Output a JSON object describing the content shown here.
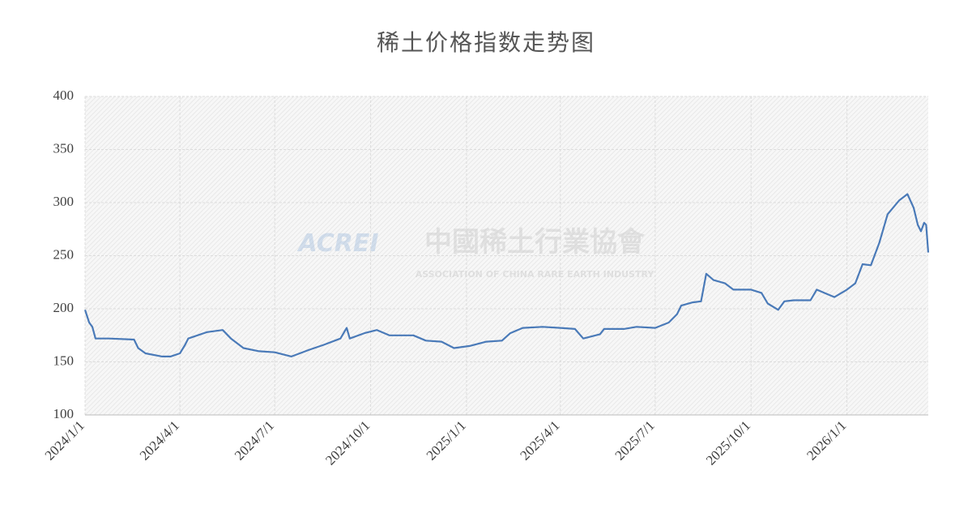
{
  "chart_data": {
    "type": "line",
    "title": "稀土价格指数走势图",
    "watermark_logo": "ACREI",
    "watermark_title": "中國稀土行業協會",
    "watermark_subtitle": "ASSOCIATION OF CHINA RARE EARTH INDUSTRY",
    "x": [
      "2024/1/1",
      "2024/1/5",
      "2024/1/8",
      "2024/1/11",
      "2024/1/17",
      "2024/1/24",
      "2024/2/17",
      "2024/2/21",
      "2024/2/28",
      "2024/3/15",
      "2024/3/23",
      "2024/4/1",
      "2024/4/6",
      "2024/4/9",
      "2024/4/15",
      "2024/4/27",
      "2024/5/12",
      "2024/5/20",
      "2024/6/1",
      "2024/6/16",
      "2024/7/1",
      "2024/7/17",
      "2024/8/2",
      "2024/8/17",
      "2024/9/2",
      "2024/9/8",
      "2024/9/11",
      "2024/9/25",
      "2024/10/7",
      "2024/10/19",
      "2024/11/11",
      "2024/11/23",
      "2024/12/8",
      "2024/12/20",
      "2025/1/4",
      "2025/1/20",
      "2025/2/4",
      "2025/2/12",
      "2025/2/24",
      "2025/3/15",
      "2025/4/1",
      "2025/4/15",
      "2025/4/23",
      "2025/5/9",
      "2025/5/13",
      "2025/6/1",
      "2025/6/13",
      "2025/7/1",
      "2025/7/14",
      "2025/7/22",
      "2025/7/26",
      "2025/8/6",
      "2025/8/14",
      "2025/8/19",
      "2025/8/26",
      "2025/9/6",
      "2025/9/14",
      "2025/10/1",
      "2025/10/11",
      "2025/10/17",
      "2025/10/27",
      "2025/11/2",
      "2025/11/11",
      "2025/11/27",
      "2025/12/3",
      "2025/12/20",
      "2026/1/1",
      "2026/1/9",
      "2026/1/16",
      "2026/1/24",
      "2026/2/1",
      "2026/2/9",
      "2026/2/20",
      "2026/2/28",
      "2026/3/6",
      "2026/3/10",
      "2026/3/13",
      "2026/3/16",
      "2026/3/18",
      "2026/3/20"
    ],
    "series": [
      {
        "color": "#4a7ab8",
        "values": [
          199,
          187,
          183,
          172,
          172,
          172,
          171,
          163,
          158,
          155,
          155,
          158,
          166,
          172,
          174,
          178,
          180,
          172,
          163,
          160,
          159,
          155,
          161,
          166,
          172,
          182,
          172,
          177,
          180,
          175,
          175,
          170,
          169,
          163,
          165,
          169,
          170,
          177,
          182,
          183,
          182,
          181,
          172,
          176,
          181,
          181,
          183,
          182,
          187,
          195,
          203,
          206,
          207,
          233,
          227,
          224,
          218,
          218,
          215,
          205,
          199,
          207,
          208,
          208,
          218,
          211,
          218,
          224,
          242,
          241,
          262,
          289,
          302,
          308,
          295,
          279,
          273,
          281,
          279,
          253
        ]
      }
    ],
    "xlim": [
      "2024/1/1",
      "2026/3/20"
    ],
    "xticks": [
      "2024/1/1",
      "2024/4/1",
      "2024/7/1",
      "2024/10/1",
      "2025/1/1",
      "2025/4/1",
      "2025/7/1",
      "2025/10/1",
      "2026/1/1"
    ],
    "ylim": [
      100,
      400
    ],
    "yticks": [
      100,
      150,
      200,
      250,
      300,
      350,
      400
    ],
    "grid": true
  }
}
